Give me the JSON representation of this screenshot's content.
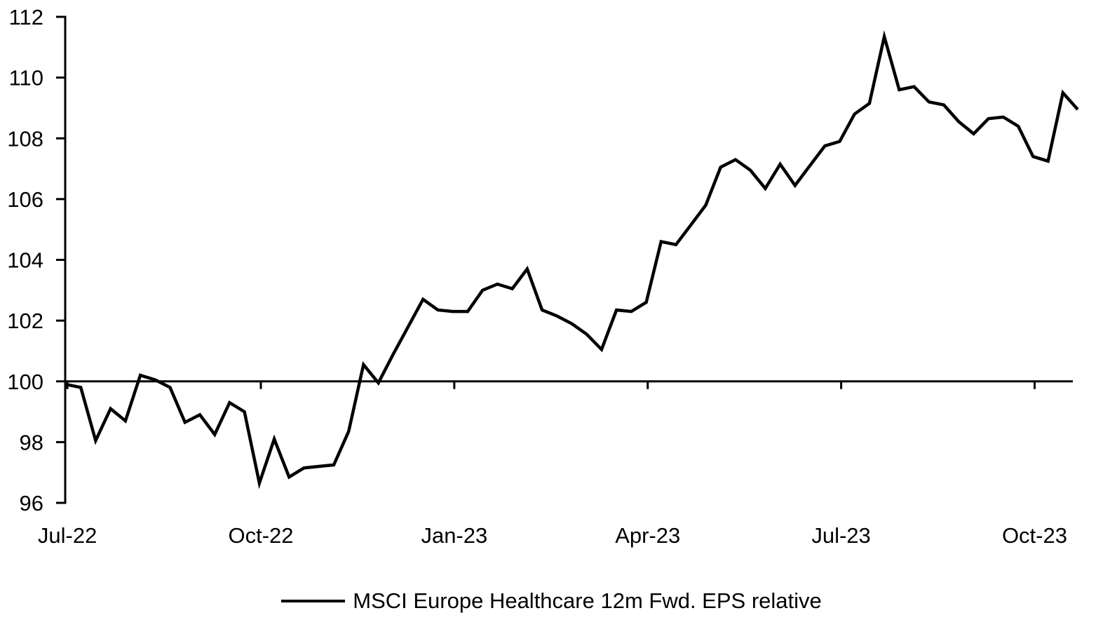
{
  "figure": {
    "background": "#ffffff",
    "axis_color": "#000000"
  },
  "chart_data": {
    "type": "line",
    "title": "",
    "xlabel": "",
    "ylabel": "",
    "grid": false,
    "legend_position": "bottom-center",
    "y_axis": {
      "min": 96,
      "max": 112,
      "tick_step": 2,
      "ticks": [
        112,
        110,
        108,
        106,
        104,
        102,
        100,
        98,
        96
      ],
      "axis_crosses_at": 100
    },
    "x_axis": {
      "tick_labels": [
        "Jul-22",
        "Oct-22",
        "Jan-23",
        "Apr-23",
        "Jul-23",
        "Oct-23"
      ],
      "tick_point_index": [
        0.1,
        13.1,
        26.1,
        39.1,
        52.1,
        65.1
      ]
    },
    "series": [
      {
        "name": "MSCI Europe Healthcare 12m Fwd. EPS relative",
        "color": "#000000",
        "values": [
          99.9,
          99.8,
          98.05,
          99.1,
          98.7,
          100.2,
          100.05,
          99.8,
          98.65,
          98.9,
          98.25,
          99.3,
          99.0,
          96.65,
          98.1,
          96.85,
          97.15,
          97.2,
          97.25,
          98.35,
          100.55,
          99.95,
          100.9,
          101.8,
          102.7,
          102.35,
          102.3,
          102.3,
          103.0,
          103.2,
          103.05,
          103.7,
          102.35,
          102.15,
          101.9,
          101.55,
          101.05,
          102.35,
          102.3,
          102.6,
          104.6,
          104.5,
          105.15,
          105.8,
          107.05,
          107.3,
          106.95,
          106.35,
          107.15,
          106.45,
          107.1,
          107.75,
          107.9,
          108.8,
          109.15,
          111.35,
          109.6,
          109.7,
          109.2,
          109.1,
          108.55,
          108.15,
          108.65,
          108.7,
          108.4,
          107.4,
          107.25,
          109.5,
          108.95
        ]
      }
    ]
  }
}
